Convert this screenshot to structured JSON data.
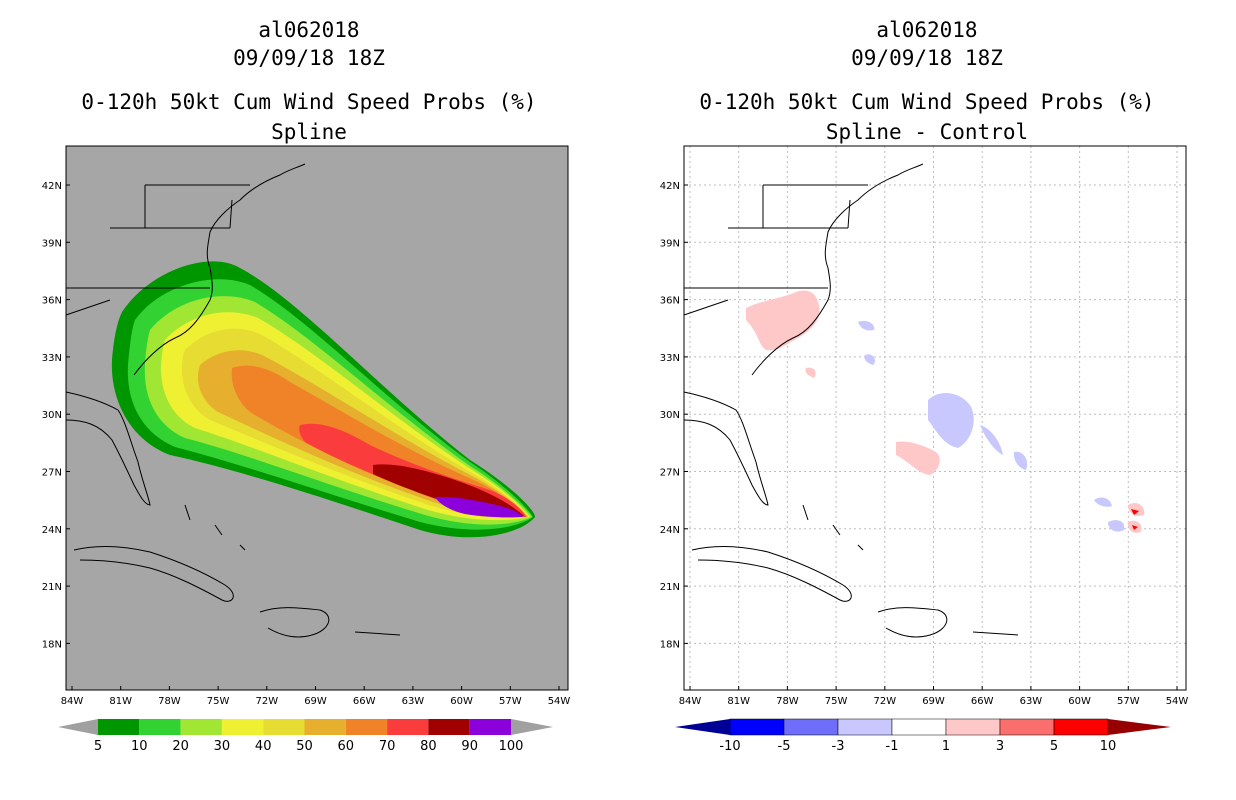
{
  "left": {
    "title_line1": "al062018",
    "title_line2": "09/09/18 18Z",
    "title_line3": "0-120h 50kt Cum Wind Speed Probs (%)",
    "title_line4": "Spline",
    "lat_labels": [
      "42N",
      "39N",
      "36N",
      "33N",
      "30N",
      "27N",
      "24N",
      "21N",
      "18N"
    ],
    "lon_labels": [
      "84W",
      "81W",
      "78W",
      "75W",
      "72W",
      "69W",
      "66W",
      "63W",
      "60W",
      "57W",
      "54W"
    ],
    "colorbar": {
      "colors": [
        "#009600",
        "#32d232",
        "#a0e632",
        "#f0f032",
        "#e6dc32",
        "#e6af2d",
        "#f08228",
        "#fa3c3c",
        "#a00000",
        "#8c00dc"
      ],
      "end_color": "#a0a0a0",
      "labels": [
        "5",
        "10",
        "20",
        "30",
        "40",
        "50",
        "60",
        "70",
        "80",
        "90",
        "100"
      ]
    }
  },
  "right": {
    "title_line1": "al062018",
    "title_line2": "09/09/18 18Z",
    "title_line3": "0-120h 50kt Cum Wind Speed Probs (%)",
    "title_line4": "Spline - Control",
    "lat_labels": [
      "42N",
      "39N",
      "36N",
      "33N",
      "30N",
      "27N",
      "24N",
      "21N",
      "18N"
    ],
    "lon_labels": [
      "84W",
      "81W",
      "78W",
      "75W",
      "72W",
      "69W",
      "66W",
      "63W",
      "60W",
      "57W",
      "54W"
    ],
    "colorbar": {
      "colors": [
        "#0000ff",
        "#6e6efa",
        "#c8c8ff",
        "#ffffff",
        "#ffc8c8",
        "#fa6e6e",
        "#ff0000"
      ],
      "left_end_color": "#000096",
      "right_end_color": "#960000",
      "labels": [
        "-10",
        "-5",
        "-3",
        "-1",
        "1",
        "3",
        "5",
        "10"
      ]
    }
  }
}
